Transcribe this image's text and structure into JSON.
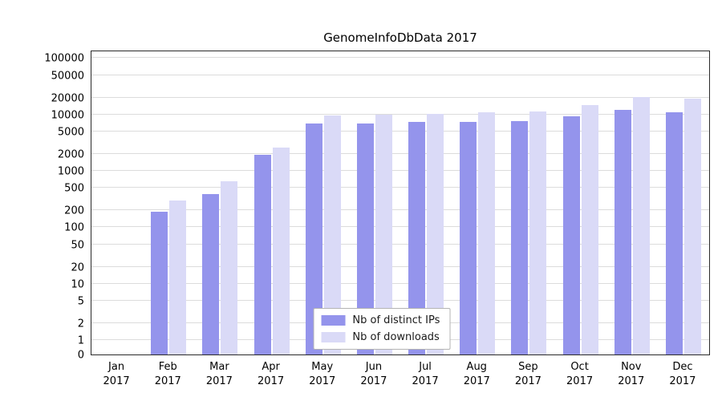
{
  "chart_data": {
    "type": "bar",
    "title": "GenomeInfoDbData 2017",
    "categories": [
      "Jan",
      "Feb",
      "Mar",
      "Apr",
      "May",
      "Jun",
      "Jul",
      "Aug",
      "Sep",
      "Oct",
      "Nov",
      "Dec"
    ],
    "year_label": "2017",
    "series": [
      {
        "name": "Nb of distinct IPs",
        "color": "#9494ec",
        "values": [
          0,
          190,
          390,
          1900,
          7000,
          6900,
          7300,
          7400,
          7700,
          9200,
          12200,
          10800
        ]
      },
      {
        "name": "Nb of downloads",
        "color": "#dadaf7",
        "values": [
          0,
          300,
          650,
          2600,
          9600,
          9900,
          10400,
          10900,
          11300,
          14800,
          20100,
          18800
        ]
      }
    ],
    "yticks": [
      0,
      1,
      2,
      5,
      10,
      20,
      50,
      100,
      200,
      500,
      1000,
      2000,
      5000,
      10000,
      20000,
      50000,
      100000
    ],
    "yscale": "symlog",
    "ylim": [
      0,
      100000
    ],
    "grid": true,
    "grid_color": "#dcdcdc",
    "legend_position": "lower center"
  }
}
